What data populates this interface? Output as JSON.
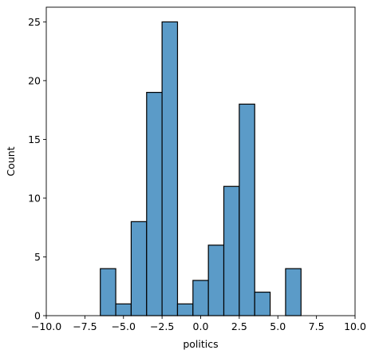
{
  "chart_data": {
    "type": "bar",
    "title": "",
    "xlabel": "politics",
    "ylabel": "Count",
    "xlim": [
      -10,
      10
    ],
    "ylim": [
      0,
      26.25
    ],
    "grid": false,
    "bar_color": "#5b9bc8",
    "edge_color": "#000000",
    "xticks": [
      -10,
      -7.5,
      -5,
      -2.5,
      0,
      2.5,
      5,
      7.5,
      10
    ],
    "xtick_labels": [
      "−10.0",
      "−7.5",
      "−5.0",
      "−2.5",
      "0.0",
      "2.5",
      "5.0",
      "7.5",
      "10.0"
    ],
    "yticks": [
      0,
      5,
      10,
      15,
      20,
      25
    ],
    "ytick_labels": [
      "0",
      "5",
      "10",
      "15",
      "20",
      "25"
    ],
    "bins": [
      {
        "start": -6.5,
        "end": -5.5,
        "count": 4
      },
      {
        "start": -5.5,
        "end": -4.5,
        "count": 1
      },
      {
        "start": -4.5,
        "end": -3.5,
        "count": 8
      },
      {
        "start": -3.5,
        "end": -2.5,
        "count": 19
      },
      {
        "start": -2.5,
        "end": -1.5,
        "count": 25
      },
      {
        "start": -1.5,
        "end": -0.5,
        "count": 1
      },
      {
        "start": -0.5,
        "end": 0.5,
        "count": 3
      },
      {
        "start": 0.5,
        "end": 1.5,
        "count": 6
      },
      {
        "start": 1.5,
        "end": 2.5,
        "count": 11
      },
      {
        "start": 2.5,
        "end": 3.5,
        "count": 18
      },
      {
        "start": 3.5,
        "end": 4.5,
        "count": 2
      },
      {
        "start": 5.5,
        "end": 6.5,
        "count": 4
      }
    ]
  }
}
